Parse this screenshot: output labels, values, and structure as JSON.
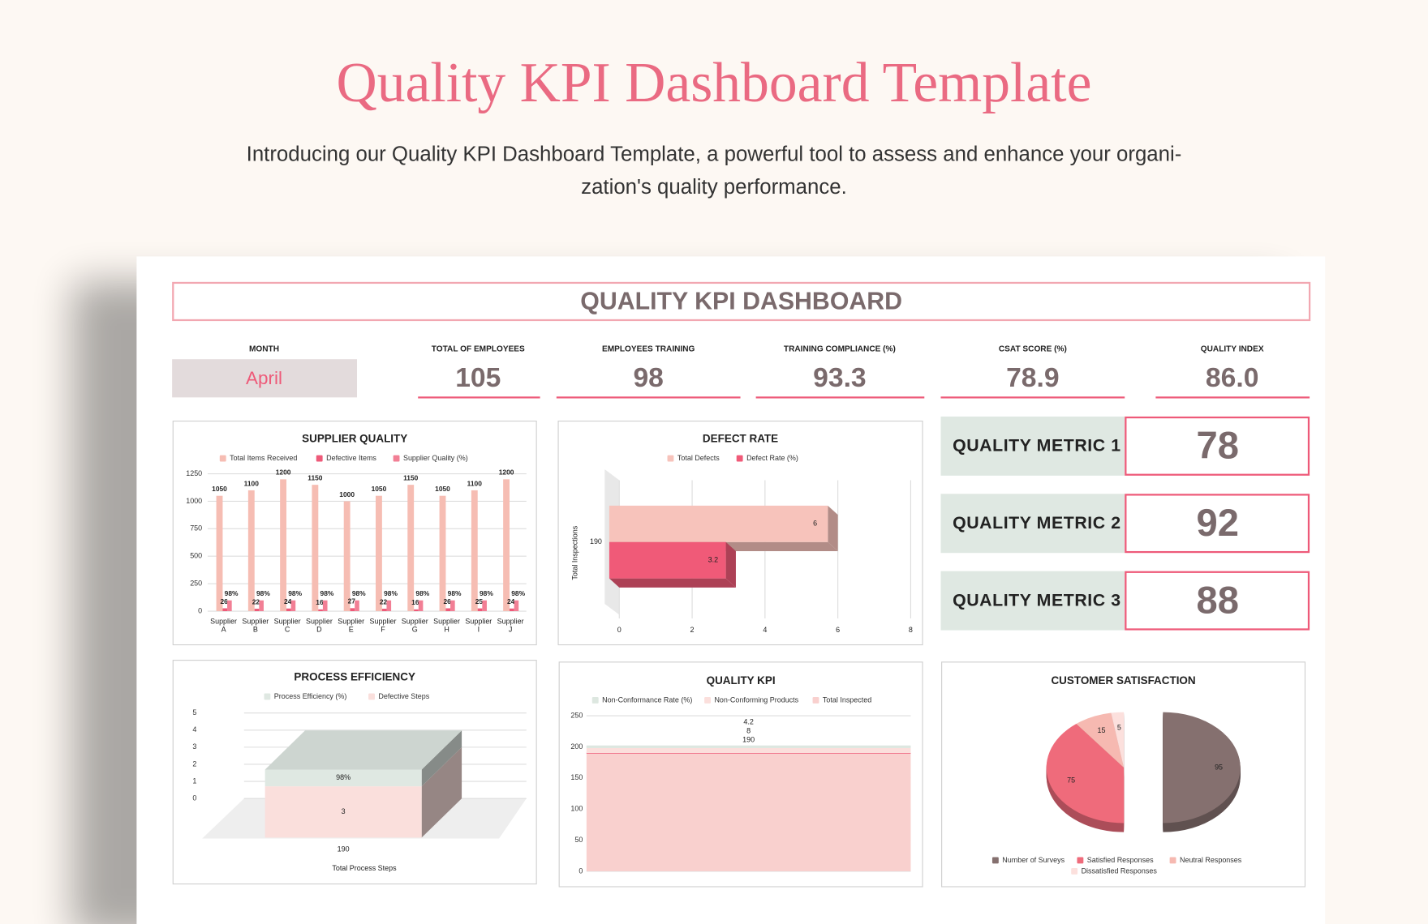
{
  "header": {
    "title": "Quality KPI Dashboard Template",
    "subtitle": [
      "Introducing our Quality KPI Dashboard Template, a powerful tool to assess and enhance your organi-",
      "zation's quality performance."
    ]
  },
  "dashboard": {
    "title": "QUALITY KPI DASHBOARD",
    "kpis": [
      {
        "label": "MONTH",
        "value": "April"
      },
      {
        "label": "TOTAL OF EMPLOYEES",
        "value": 105
      },
      {
        "label": "EMPLOYEES TRAINING",
        "value": 98
      },
      {
        "label": "TRAINING COMPLIANCE (%)",
        "value": 93.3
      },
      {
        "label": "CSAT SCORE (%)",
        "value": 78.9
      },
      {
        "label": "QUALITY INDEX",
        "value": "86.0"
      }
    ],
    "metrics": [
      {
        "label": "QUALITY METRIC 1",
        "value": 78
      },
      {
        "label": "QUALITY METRIC 2",
        "value": 92
      },
      {
        "label": "QUALITY METRIC 3",
        "value": 88
      }
    ]
  },
  "chart_data": [
    {
      "type": "grouped_bar",
      "title": "SUPPLIER QUALITY",
      "categories": [
        "Supplier A",
        "Supplier B",
        "Supplier C",
        "Supplier D",
        "Supplier E",
        "Supplier F",
        "Supplier G",
        "Supplier H",
        "Supplier I",
        "Supplier J"
      ],
      "series": [
        {
          "name": "Total Items Received",
          "color": "#f6bdb3",
          "values": [
            1050,
            1100,
            1200,
            1150,
            1000,
            1050,
            1150,
            1050,
            1100,
            1200
          ]
        },
        {
          "name": "Defective Items",
          "color": "#ee5a79",
          "values": [
            26,
            22,
            24,
            16,
            27,
            22,
            16,
            26,
            25,
            24
          ]
        },
        {
          "name": "Supplier Quality (%)",
          "color": "#f27f95",
          "values": [
            98,
            98,
            98,
            98,
            98,
            98,
            98,
            98,
            98,
            98
          ],
          "value_labels": [
            "98%",
            "98%",
            "98%",
            "98%",
            "98%",
            "98%",
            "98%",
            "98%",
            "98%",
            "98%"
          ]
        }
      ],
      "ylim": [
        0,
        1250
      ],
      "yticks": [
        0,
        250,
        500,
        750,
        1000,
        1250
      ],
      "grid": true
    },
    {
      "type": "hbar3d",
      "title": "DEFECT RATE",
      "y_label": "Total Inspections",
      "categories": [
        "190"
      ],
      "series": [
        {
          "name": "Total Defects",
          "color": "#f7c3bb",
          "values": [
            6
          ]
        },
        {
          "name": "Defect Rate (%)",
          "color": "#f05a78",
          "values": [
            3.2
          ]
        }
      ],
      "xlim": [
        0,
        8
      ],
      "xticks": [
        0,
        2,
        4,
        6,
        8
      ],
      "grid": true
    },
    {
      "type": "stacked_bar3d",
      "title": "PROCESS EFFICIENCY",
      "x_label": "Total Process Steps",
      "categories": [
        "190"
      ],
      "series": [
        {
          "name": "Process Efficiency (%)",
          "color": "#dfe8e2",
          "values": [
            0.98
          ],
          "value_labels": [
            "98%"
          ]
        },
        {
          "name": "Defective Steps",
          "color": "#fadfdc",
          "values": [
            3
          ]
        }
      ],
      "ylim": [
        0,
        5
      ],
      "yticks": [
        0,
        1,
        2,
        3,
        4,
        5
      ],
      "grid": true
    },
    {
      "type": "stacked_area",
      "title": "QUALITY KPI",
      "series": [
        {
          "name": "Non-Conformance Rate (%)",
          "color": "#dde7e0",
          "values": [
            4.2
          ]
        },
        {
          "name": "Non-Conforming Products",
          "color": "#fbdfdc",
          "values": [
            8
          ]
        },
        {
          "name": "Total Inspected",
          "color": "#f9d0ce",
          "values": [
            190
          ]
        }
      ],
      "ylim": [
        0,
        250
      ],
      "yticks": [
        0,
        50,
        100,
        150,
        200,
        250
      ],
      "grid": true
    },
    {
      "type": "pie",
      "title": "CUSTOMER SATISFACTION",
      "categories": [
        "Number of Surveys",
        "Satisfied Responses",
        "Neutral Responses",
        "Dissatisfied Responses"
      ],
      "values": [
        95,
        75,
        15,
        5
      ],
      "colors": [
        "#85706f",
        "#ef6b7b",
        "#f6b9b1",
        "#fce0dd"
      ]
    }
  ]
}
